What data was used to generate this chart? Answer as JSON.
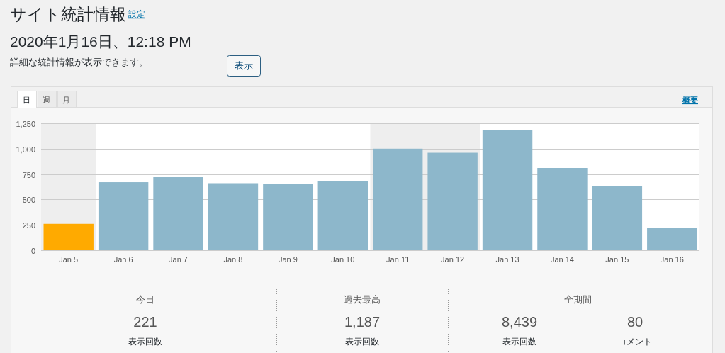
{
  "chart_data": [
    {
      "type": "bar",
      "title": "サイト統計情報",
      "subtitle": "2020年1月16日、12:18 PM",
      "annotations": [
        "設定",
        "詳細な統計情報が表示できます。",
        "表示",
        "日",
        "週",
        "月",
        "概要"
      ],
      "categories": [
        "Jan 5",
        "Jan 6",
        "Jan 7",
        "Jan 8",
        "Jan 9",
        "Jan 10",
        "Jan 11",
        "Jan 12",
        "Jan 13",
        "Jan 14",
        "Jan 15",
        "Jan 16"
      ],
      "values": [
        260,
        670,
        720,
        660,
        650,
        680,
        1000,
        960,
        1187,
        810,
        630,
        221
      ],
      "colors": [
        "#ffaa00",
        "#8db7cb",
        "#8db7cb",
        "#8db7cb",
        "#8db7cb",
        "#8db7cb",
        "#8db7cb",
        "#8db7cb",
        "#8db7cb",
        "#8db7cb",
        "#8db7cb",
        "#8db7cb"
      ],
      "ylim": [
        0,
        1250
      ],
      "yticks": [
        0,
        250,
        500,
        750,
        {
          "value": 1000,
          "label": "1,000"
        },
        {
          "value": 1250,
          "label": "1,250"
        }
      ],
      "grid": "y",
      "bands": [
        {
          "axis": "x",
          "from": "Jan 5",
          "to": "Jan 5",
          "color": "#eeeeee"
        },
        {
          "axis": "x",
          "from": "Jan 11",
          "to": "Jan 12",
          "color": "#eeeeee"
        }
      ]
    },
    {
      "type": "other",
      "annotations": [
        "今日",
        "221",
        "表示回数",
        "過去最高",
        "1,187",
        "表示回数",
        "全期間",
        "8,439",
        "表示回数",
        "80",
        "コメント"
      ]
    }
  ]
}
